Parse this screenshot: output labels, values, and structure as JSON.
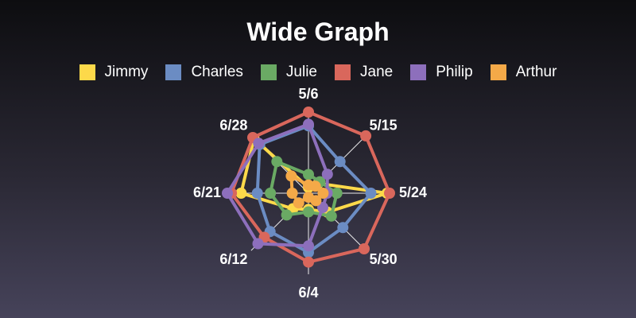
{
  "chart_data": {
    "type": "radar",
    "title": "Wide Graph",
    "categories": [
      "5/6",
      "5/15",
      "5/24",
      "5/30",
      "6/4",
      "6/12",
      "6/21",
      "6/28"
    ],
    "rmax": 100,
    "grid": true,
    "legend_position": "top",
    "series": [
      {
        "name": "Jimmy",
        "color": "#fdd94a",
        "values": [
          7,
          17,
          97,
          33,
          20,
          27,
          83,
          95
        ]
      },
      {
        "name": "Charles",
        "color": "#6b8cc3",
        "values": [
          83,
          55,
          77,
          60,
          73,
          67,
          63,
          85
        ]
      },
      {
        "name": "Julie",
        "color": "#6aaa64",
        "values": [
          23,
          20,
          35,
          40,
          23,
          38,
          47,
          55
        ]
      },
      {
        "name": "Jane",
        "color": "#d9675c",
        "values": [
          100,
          100,
          100,
          97,
          85,
          77,
          95,
          97
        ]
      },
      {
        "name": "Philip",
        "color": "#8d6fbc",
        "values": [
          85,
          33,
          23,
          25,
          65,
          88,
          100,
          87
        ]
      },
      {
        "name": "Arthur",
        "color": "#f4a948",
        "values": [
          10,
          12,
          18,
          13,
          5,
          17,
          20,
          30
        ]
      }
    ]
  }
}
